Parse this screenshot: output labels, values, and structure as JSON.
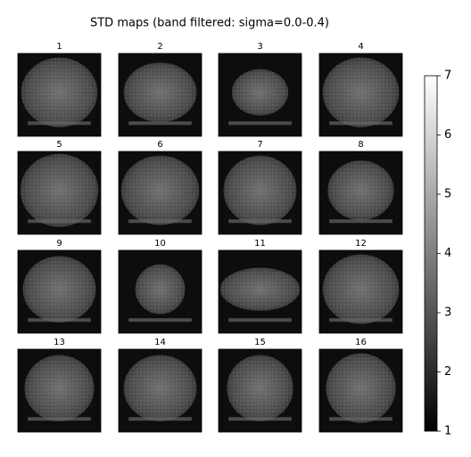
{
  "chart_data": {
    "type": "image_grid",
    "title": "STD maps (band filtered: sigma=0.0-0.4)",
    "panels": [
      "1",
      "2",
      "3",
      "4",
      "5",
      "6",
      "7",
      "8",
      "9",
      "10",
      "11",
      "12",
      "13",
      "14",
      "15",
      "16"
    ],
    "colormap": "gray",
    "clim": [
      1,
      7
    ],
    "cticks": [
      1,
      2,
      3,
      4,
      5,
      6,
      7
    ]
  }
}
